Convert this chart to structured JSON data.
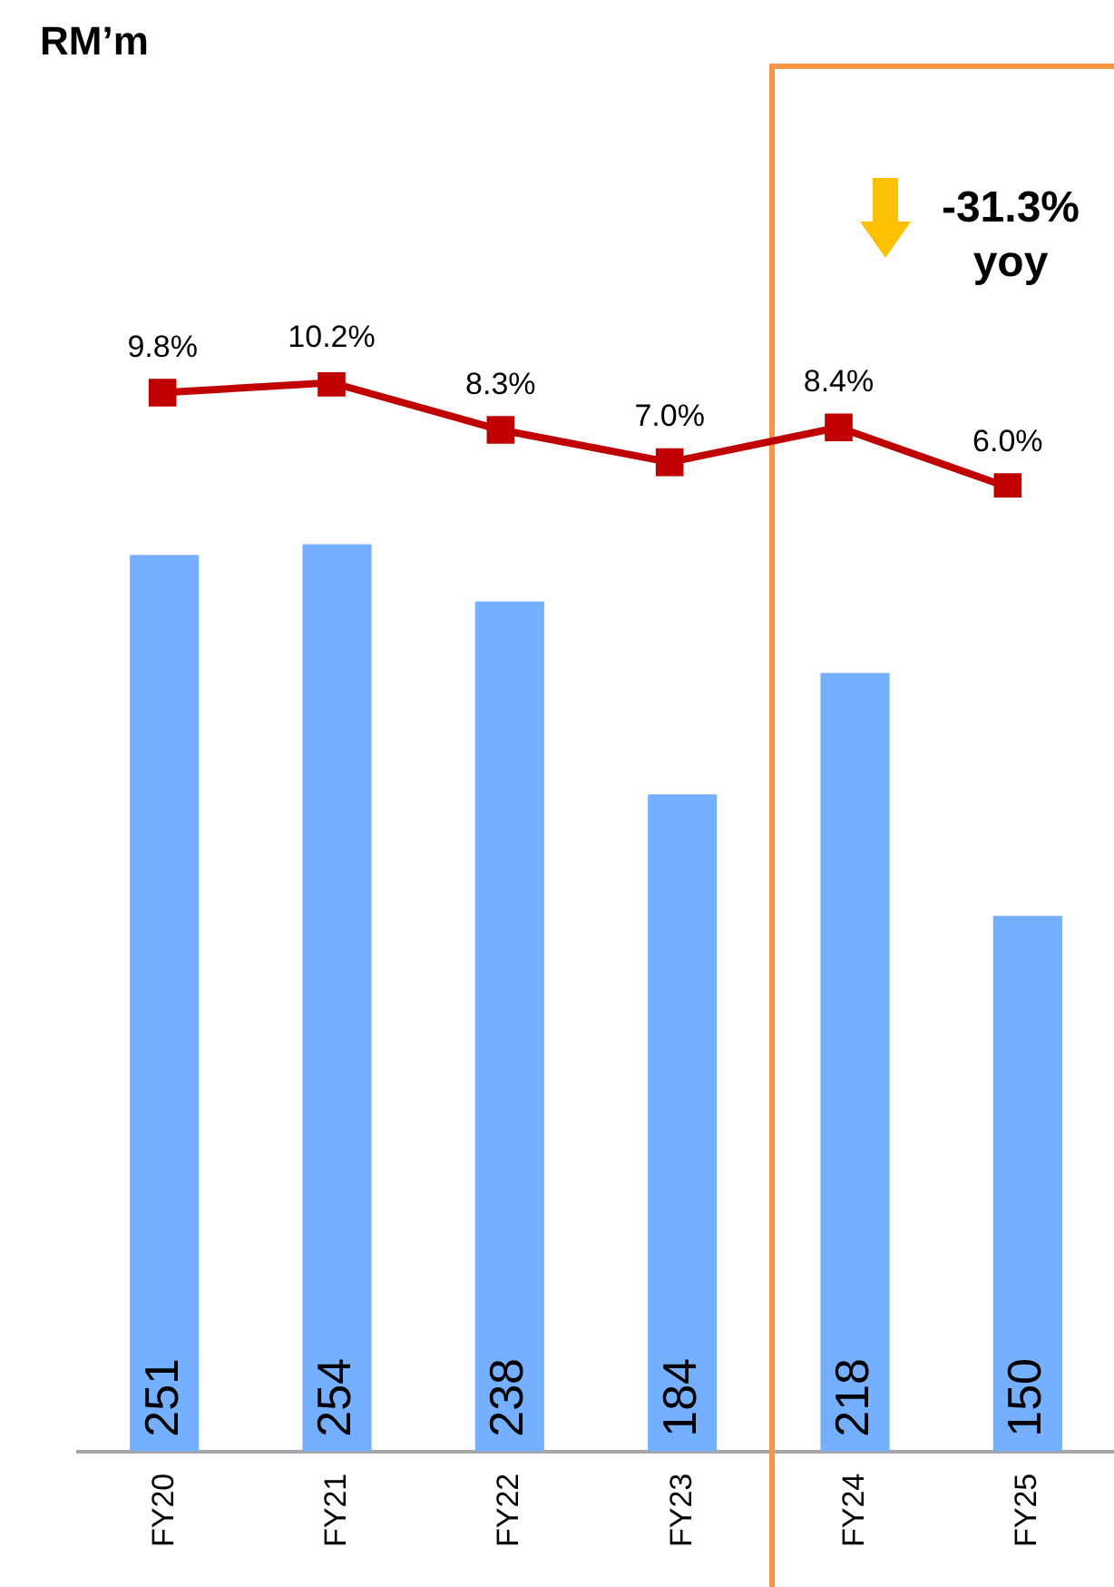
{
  "chart_data": [
    {
      "type": "bar",
      "categories": [
        "FY20",
        "FY21",
        "FY22",
        "FY23",
        "FY24",
        "FY25"
      ],
      "color": "#74b0ff",
      "values": [
        251,
        254,
        238,
        184,
        218,
        150
      ],
      "tick_labels": "x",
      "data_labels": true,
      "grid": false,
      "legend": false,
      "annotations": [
        "RM’m",
        "-31.3% yoy"
      ]
    },
    {
      "type": "line",
      "categories": [
        null,
        null,
        null,
        null,
        null,
        null
      ],
      "color": "#c00000",
      "marker": "square",
      "values": [
        9.8,
        10.2,
        8.3,
        7.0,
        8.4,
        6.0
      ],
      "value_labels": [
        "9.8%",
        "10.2%",
        "8.3%",
        "7.0%",
        "8.4%",
        "6.0%"
      ],
      "tick_labels": false,
      "grid": false,
      "legend": false
    }
  ]
}
